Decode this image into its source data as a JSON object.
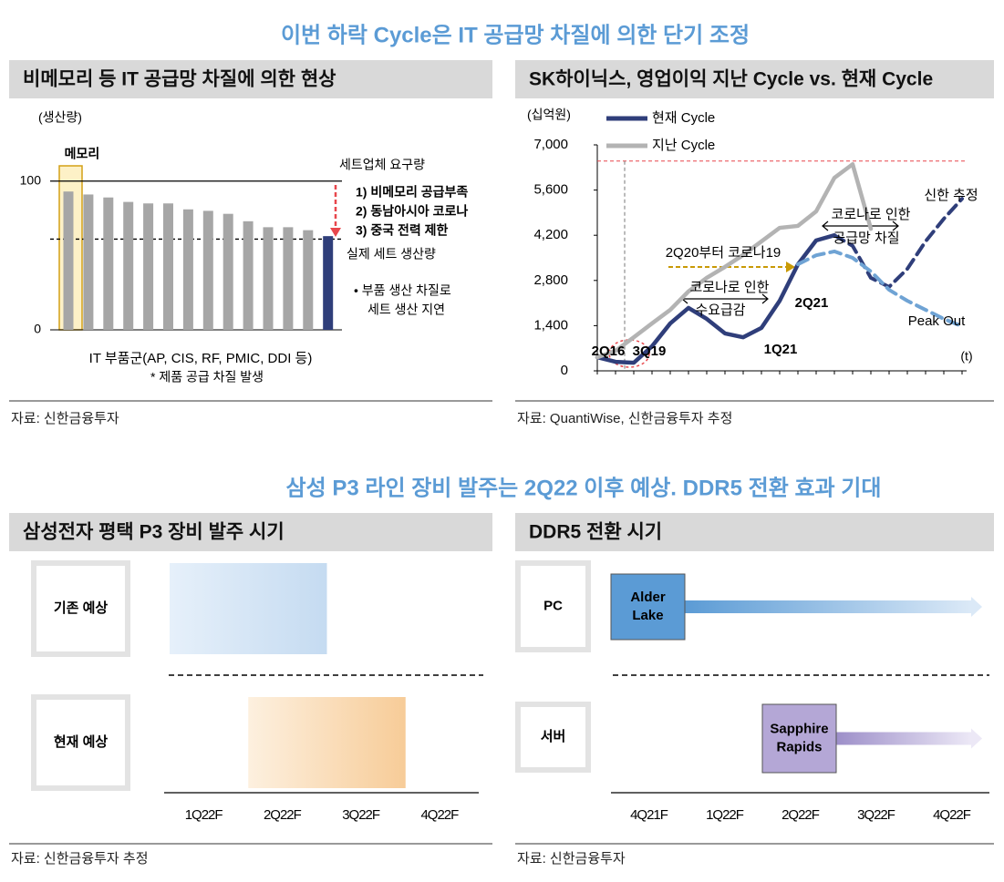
{
  "heading1": "이번 하락 Cycle은 IT 공급망 차질에 의한 단기 조정",
  "heading2": "삼성 P3 라인 장비 발주는 2Q22 이후 예상. DDR5 전환 효과 기대",
  "chart_data": [
    {
      "type": "bar",
      "title": "비메모리 등 IT 공급망 차질에 의한 현상",
      "ylabel": "(생산량)",
      "xlabel": "IT 부품군(AP, CIS, RF, PMIC, DDI 등)",
      "categories": [
        null,
        null,
        null,
        null,
        null,
        null,
        null,
        null,
        null,
        null,
        null,
        null,
        null,
        null
      ],
      "values": [
        93,
        91,
        89,
        86,
        85,
        85,
        81,
        80,
        78,
        73,
        69,
        69,
        67,
        63
      ],
      "colors": [
        "#a6a6a6",
        "#a6a6a6",
        "#a6a6a6",
        "#a6a6a6",
        "#a6a6a6",
        "#a6a6a6",
        "#a6a6a6",
        "#a6a6a6",
        "#a6a6a6",
        "#a6a6a6",
        "#a6a6a6",
        "#a6a6a6",
        "#a6a6a6",
        "#2f3e7a"
      ],
      "ylim": [
        0,
        136
      ],
      "yticks": [
        0,
        100
      ],
      "reference_lines": [
        {
          "label": "세트업체 요구량",
          "value": 100,
          "style": "solid"
        },
        {
          "label": "실제 세트 생산량",
          "value": 61,
          "style": "dashed"
        }
      ],
      "annotations": [
        "메모리",
        "1) 비메모리 공급부족",
        "2) 동남아시아 코로나",
        "3) 중국 전력 제한",
        "• 부품 생산 차질로",
        "세트 생산 지연",
        "* 제품 공급 차질 발생"
      ],
      "source": "자료: 신한금융투자"
    },
    {
      "type": "line",
      "title": "SK하이닉스, 영업이익 지난 Cycle vs. 현재 Cycle",
      "ylabel": "(십억원)",
      "xlabel": "(t)",
      "x": [
        0,
        1,
        2,
        3,
        4,
        5,
        6,
        7,
        8,
        9,
        10,
        11,
        12,
        13,
        14,
        15,
        16,
        17,
        18,
        19,
        20
      ],
      "xlim": [
        0,
        20
      ],
      "ylim": [
        0,
        7000
      ],
      "yticks": [
        0,
        {
          "value": 1400,
          "label": "1,400"
        },
        {
          "value": 2800,
          "label": "2,800"
        },
        {
          "value": 4200,
          "label": "4,200"
        },
        {
          "value": 5600,
          "label": "5,600"
        },
        {
          "value": 7000,
          "label": "7,000"
        }
      ],
      "series": [
        {
          "name": "현재 Cycle",
          "color": "#2f3e7a",
          "dash": false,
          "values": [
            420,
            280,
            250,
            760,
            1470,
            1950,
            1610,
            1160,
            1040,
            1330,
            2170,
            3300,
            4040,
            4200,
            null,
            null,
            null,
            null,
            null,
            null,
            null
          ]
        },
        {
          "name": "지난 Cycle",
          "color": "#b3b3b3",
          "dash": false,
          "values": [
            420,
            620,
            1040,
            1470,
            1890,
            2460,
            2880,
            3220,
            3590,
            4010,
            4430,
            4490,
            4940,
            5980,
            6400,
            4400,
            null,
            null,
            null,
            null,
            null
          ]
        },
        {
          "name": "신한 추정",
          "color": "#2f3e7a",
          "dash": true,
          "values": [
            null,
            null,
            null,
            null,
            null,
            null,
            null,
            null,
            null,
            null,
            null,
            null,
            null,
            4200,
            3870,
            2880,
            2600,
            3160,
            4010,
            4710,
            5330
          ]
        },
        {
          "name": "Peak Out",
          "color": "#6fa3d4",
          "dash": true,
          "values": [
            null,
            null,
            null,
            null,
            null,
            null,
            null,
            null,
            null,
            null,
            null,
            3300,
            3580,
            3700,
            3500,
            3080,
            2510,
            2170,
            1890,
            1610,
            1380
          ]
        }
      ],
      "reference_y": 6500,
      "reference_x": 1.5,
      "annotations": [
        "2Q16",
        "3Q19",
        "1Q21",
        "2Q21",
        "2Q20부터 코로나19",
        "코로나로 인한",
        "수요급감",
        "코로나로 인한",
        "공급망 차질"
      ],
      "source": "자료: QuantiWise, 신한금융투자 추정"
    },
    {
      "type": "timeline",
      "title": "삼성전자 평택 P3 장비 발주 시기",
      "categories": [
        "1Q22F",
        "2Q22F",
        "3Q22F",
        "4Q22F"
      ],
      "xlim": [
        0,
        4
      ],
      "rows": [
        {
          "label": "기존 예상",
          "label_color": "#111111",
          "from": 0,
          "to": 2,
          "color": "#c9def3"
        },
        {
          "label": "현재 예상",
          "label_color": "#e8474c",
          "from": 1,
          "to": 3,
          "color": "#f8d0a0"
        }
      ],
      "source": "자료: 신한금융투자 추정"
    },
    {
      "type": "timeline",
      "title": "DDR5 전환 시기",
      "categories": [
        "4Q21F",
        "1Q22F",
        "2Q22F",
        "3Q22F",
        "4Q22F"
      ],
      "xlim": [
        0,
        5
      ],
      "rows": [
        {
          "label": "PC",
          "label_color": "#111111",
          "from": 0,
          "box": [
            "Alder",
            "Lake"
          ],
          "color": "#5b9bd5"
        },
        {
          "label": "서버",
          "label_color": "#111111",
          "from": 2,
          "box": [
            "Sapphire",
            "Rapids"
          ],
          "color": "#b4a7d6"
        }
      ],
      "source": "자료: 신한금융투자"
    }
  ]
}
